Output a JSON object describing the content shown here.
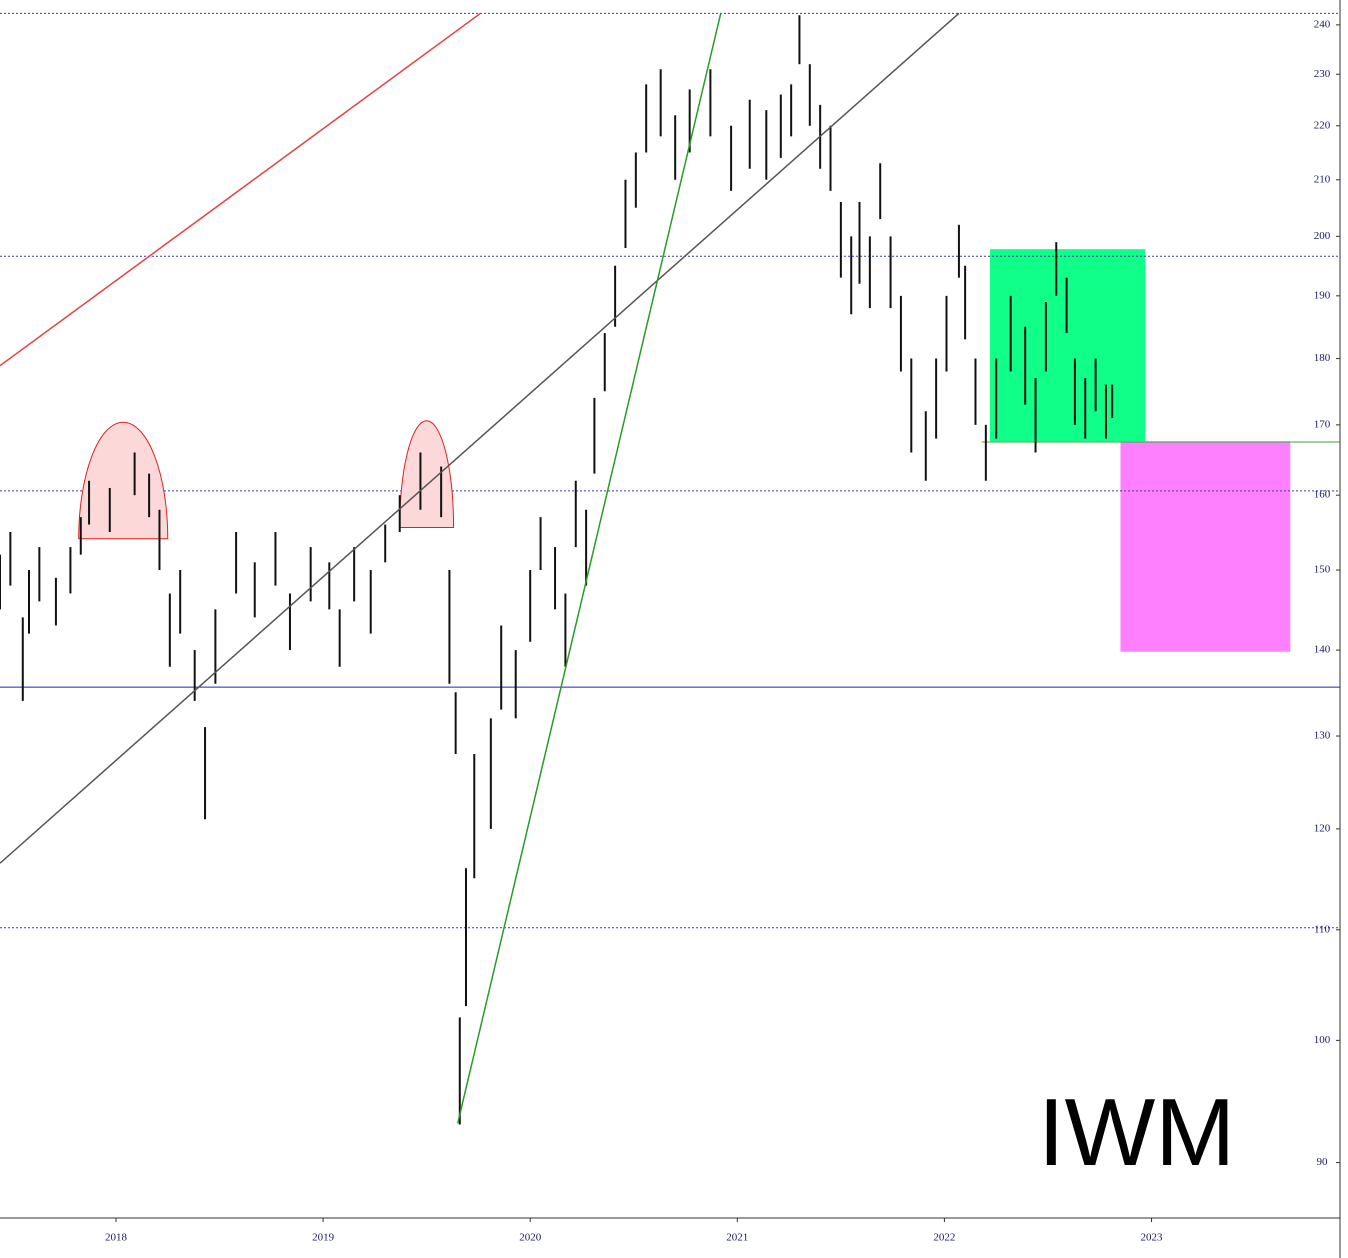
{
  "chart_data": {
    "type": "range-bar",
    "annotation": "IWM",
    "log_scale": true,
    "bar_color": "#111111",
    "xlim": [
      2017.44,
      2023.91
    ],
    "xticks": [
      2018,
      2019,
      2020,
      2021,
      2022,
      2023
    ],
    "ylim": [
      85.8,
      245.2
    ],
    "yticks": [
      240,
      230,
      220,
      210,
      200,
      190,
      180,
      170,
      160,
      150,
      140,
      130,
      120,
      110,
      100,
      90
    ],
    "x": [
      2017.44,
      2017.49,
      2017.55,
      2017.58,
      2017.63,
      2017.71,
      2017.78,
      2017.83,
      2017.87,
      2017.97,
      2018.09,
      2018.16,
      2018.21,
      2018.26,
      2018.31,
      2018.38,
      2018.43,
      2018.48,
      2018.58,
      2018.67,
      2018.77,
      2018.84,
      2018.94,
      2019.03,
      2019.08,
      2019.15,
      2019.23,
      2019.3,
      2019.37,
      2019.47,
      2019.57,
      2019.61,
      2019.64,
      2019.66,
      2019.69,
      2019.73,
      2019.81,
      2019.86,
      2019.93,
      2020.0,
      2020.05,
      2020.12,
      2020.17,
      2020.22,
      2020.27,
      2020.31,
      2020.36,
      2020.41,
      2020.46,
      2020.51,
      2020.56,
      2020.63,
      2020.7,
      2020.77,
      2020.87,
      2020.97,
      2021.06,
      2021.14,
      2021.21,
      2021.26,
      2021.3,
      2021.35,
      2021.4,
      2021.45,
      2021.5,
      2021.55,
      2021.59,
      2021.64,
      2021.69,
      2021.74,
      2021.79,
      2021.84,
      2021.91,
      2021.96,
      2022.01,
      2022.07,
      2022.1,
      2022.15,
      2022.2,
      2022.25,
      2022.32,
      2022.39,
      2022.44,
      2022.49,
      2022.54,
      2022.59,
      2022.63,
      2022.68,
      2022.73,
      2022.78,
      2022.81
    ],
    "low": [
      145,
      148,
      134,
      142,
      146,
      143,
      147,
      152,
      156,
      155,
      160,
      157,
      150,
      138,
      142,
      134,
      121,
      136,
      147,
      144,
      148,
      140,
      146,
      145,
      138,
      146,
      142,
      151,
      155,
      158,
      157,
      136,
      128,
      93,
      103,
      115,
      120,
      133,
      132,
      141,
      150,
      145,
      138,
      153,
      148,
      163,
      175,
      185,
      198,
      205,
      215,
      218,
      210,
      215,
      218,
      208,
      212,
      210,
      214,
      218,
      232,
      220,
      212,
      208,
      193,
      187,
      192,
      188,
      203,
      188,
      178,
      166,
      162,
      168,
      178,
      193,
      183,
      170,
      162,
      168,
      178,
      173,
      166,
      178,
      190,
      184,
      170,
      168,
      172,
      168,
      171
    ],
    "high": [
      152,
      155,
      144,
      150,
      153,
      149,
      153,
      157,
      162,
      161,
      166,
      163,
      158,
      147,
      150,
      140,
      131,
      145,
      155,
      151,
      155,
      147,
      153,
      151,
      145,
      153,
      150,
      156,
      160,
      166,
      164,
      150,
      135,
      102,
      116,
      128,
      132,
      143,
      140,
      150,
      157,
      153,
      147,
      162,
      158,
      174,
      184,
      195,
      210,
      215,
      228,
      231,
      222,
      227,
      231,
      220,
      225,
      223,
      226,
      228,
      242,
      232,
      224,
      220,
      206,
      200,
      206,
      200,
      213,
      200,
      190,
      180,
      172,
      180,
      190,
      202,
      195,
      180,
      170,
      180,
      190,
      185,
      177,
      189,
      199,
      193,
      180,
      177,
      180,
      176,
      176
    ],
    "hlines": [
      {
        "value": 242.4,
        "color": "#3a3aa8",
        "style": "dotted"
      },
      {
        "value": 196.6,
        "color": "#3a3aa8",
        "style": "dotted"
      },
      {
        "value": 160.6,
        "color": "#3a3aa8",
        "style": "dotted"
      },
      {
        "value": 110.2,
        "color": "#3a3aa8",
        "style": "dotted"
      },
      {
        "value": 135.6,
        "color": "#2020c0",
        "style": "solid"
      },
      {
        "value": 167.5,
        "color": "#3aa83a",
        "style": "solid",
        "from": 2022.18
      }
    ],
    "trendlines": [
      {
        "color": "#e84040",
        "x": [
          2017.44,
          2019.76
        ],
        "y": [
          178.9,
          242.4
        ]
      },
      {
        "color": "#555555",
        "x": [
          2017.44,
          2022.07
        ],
        "y": [
          116.5,
          242.4
        ]
      },
      {
        "color": "#2a9a2a",
        "x": [
          2019.65,
          2020.92
        ],
        "y": [
          93.1,
          242.4
        ]
      }
    ],
    "boxes": [
      {
        "color": "#10ff88",
        "x": [
          2022.22,
          2022.97
        ],
        "y": [
          167.6,
          197.8
        ]
      },
      {
        "color": "#ff80ff",
        "x": [
          2022.85,
          2023.67
        ],
        "y": [
          139.8,
          167.6
        ]
      }
    ],
    "domes": [
      {
        "x": [
          2017.82,
          2018.25
        ],
        "base": 154.1,
        "top": 170.4
      },
      {
        "x": [
          2019.37,
          2019.63
        ],
        "base": 155.6,
        "top": 170.6
      }
    ]
  }
}
